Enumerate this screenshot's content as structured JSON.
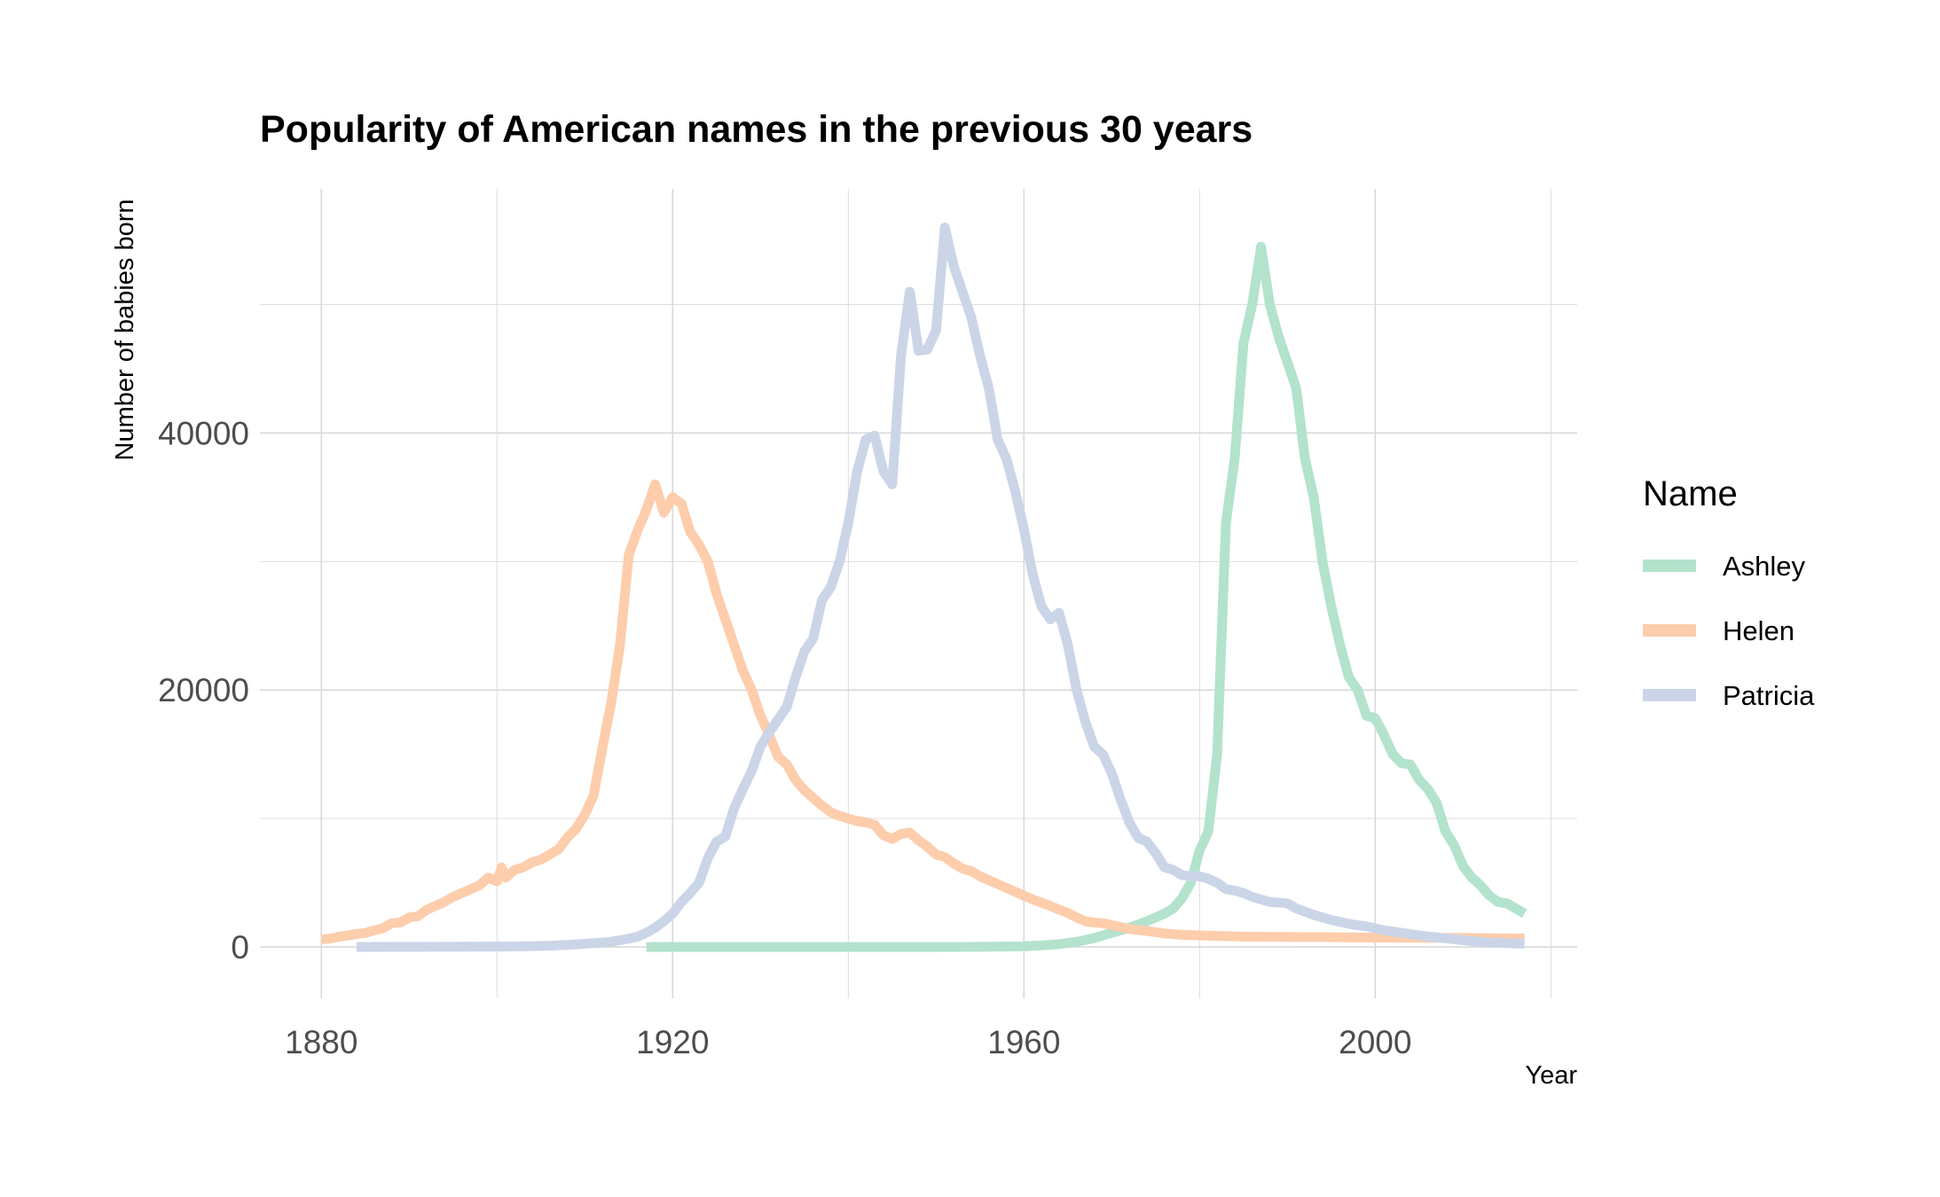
{
  "chart_data": {
    "type": "line",
    "title": "Popularity of American names in the previous 30 years",
    "xlabel": "Year",
    "ylabel": "Number of babies born",
    "xlim": [
      1873,
      2023
    ],
    "ylim": [
      -4000,
      59000
    ],
    "x_ticks": [
      1880,
      1920,
      1960,
      2000
    ],
    "x_tick_labels": [
      "1880",
      "1920",
      "1960",
      "2000"
    ],
    "x_minor_ticks": [
      1900,
      1940,
      1980,
      2020
    ],
    "y_ticks": [
      0,
      20000,
      40000
    ],
    "y_tick_labels": [
      "0",
      "20000",
      "40000"
    ],
    "y_minor_ticks": [
      10000,
      30000,
      50000
    ],
    "grid": true,
    "legend": {
      "title": "Name",
      "position": "right"
    },
    "series": [
      {
        "name": "Ashley",
        "color": "#b3e2cd",
        "points": [
          [
            1917,
            0
          ],
          [
            1920,
            0
          ],
          [
            1930,
            0
          ],
          [
            1940,
            0
          ],
          [
            1950,
            0
          ],
          [
            1955,
            10
          ],
          [
            1960,
            60
          ],
          [
            1962,
            120
          ],
          [
            1964,
            220
          ],
          [
            1966,
            400
          ],
          [
            1968,
            700
          ],
          [
            1970,
            1100
          ],
          [
            1972,
            1500
          ],
          [
            1974,
            2000
          ],
          [
            1976,
            2600
          ],
          [
            1977,
            3000
          ],
          [
            1978,
            3800
          ],
          [
            1979,
            5000
          ],
          [
            1980,
            7500
          ],
          [
            1981,
            9000
          ],
          [
            1982,
            15000
          ],
          [
            1983,
            33000
          ],
          [
            1984,
            38000
          ],
          [
            1985,
            47000
          ],
          [
            1986,
            50000
          ],
          [
            1987,
            54500
          ],
          [
            1988,
            50000
          ],
          [
            1989,
            47500
          ],
          [
            1990,
            45500
          ],
          [
            1991,
            43500
          ],
          [
            1992,
            38000
          ],
          [
            1993,
            35000
          ],
          [
            1994,
            30000
          ],
          [
            1995,
            26500
          ],
          [
            1996,
            23500
          ],
          [
            1997,
            21000
          ],
          [
            1998,
            20000
          ],
          [
            1999,
            18000
          ],
          [
            2000,
            17800
          ],
          [
            2001,
            16500
          ],
          [
            2002,
            15000
          ],
          [
            2003,
            14300
          ],
          [
            2004,
            14200
          ],
          [
            2005,
            13000
          ],
          [
            2006,
            12300
          ],
          [
            2007,
            11200
          ],
          [
            2008,
            9000
          ],
          [
            2009,
            7900
          ],
          [
            2010,
            6300
          ],
          [
            2011,
            5400
          ],
          [
            2012,
            4800
          ],
          [
            2013,
            4000
          ],
          [
            2014,
            3500
          ],
          [
            2015,
            3400
          ],
          [
            2016,
            3000
          ],
          [
            2017,
            2600
          ]
        ]
      },
      {
        "name": "Helen",
        "color": "#fdcdac",
        "points": [
          [
            1880,
            600
          ],
          [
            1881,
            650
          ],
          [
            1882,
            800
          ],
          [
            1883,
            900
          ],
          [
            1884,
            1000
          ],
          [
            1885,
            1100
          ],
          [
            1886,
            1300
          ],
          [
            1887,
            1450
          ],
          [
            1888,
            1850
          ],
          [
            1889,
            1900
          ],
          [
            1890,
            2300
          ],
          [
            1891,
            2400
          ],
          [
            1892,
            2900
          ],
          [
            1893,
            3200
          ],
          [
            1894,
            3500
          ],
          [
            1895,
            3900
          ],
          [
            1896,
            4200
          ],
          [
            1897,
            4500
          ],
          [
            1898,
            4800
          ],
          [
            1899,
            5400
          ],
          [
            1900,
            5100
          ],
          [
            1900.5,
            6200
          ],
          [
            1901,
            5400
          ],
          [
            1902,
            6000
          ],
          [
            1903,
            6200
          ],
          [
            1904,
            6600
          ],
          [
            1905,
            6800
          ],
          [
            1906,
            7200
          ],
          [
            1907,
            7600
          ],
          [
            1908,
            8500
          ],
          [
            1909,
            9200
          ],
          [
            1910,
            10300
          ],
          [
            1911,
            11800
          ],
          [
            1912,
            15500
          ],
          [
            1913,
            19000
          ],
          [
            1914,
            23500
          ],
          [
            1915,
            30500
          ],
          [
            1916,
            32400
          ],
          [
            1917,
            34000
          ],
          [
            1918,
            36000
          ],
          [
            1919,
            33800
          ],
          [
            1920,
            35000
          ],
          [
            1921,
            34500
          ],
          [
            1922,
            32300
          ],
          [
            1923,
            31300
          ],
          [
            1924,
            30000
          ],
          [
            1925,
            27500
          ],
          [
            1926,
            25500
          ],
          [
            1927,
            23500
          ],
          [
            1928,
            21500
          ],
          [
            1929,
            20000
          ],
          [
            1930,
            18000
          ],
          [
            1931,
            16500
          ],
          [
            1932,
            14800
          ],
          [
            1933,
            14200
          ],
          [
            1934,
            13000
          ],
          [
            1935,
            12200
          ],
          [
            1936,
            11600
          ],
          [
            1937,
            11000
          ],
          [
            1938,
            10500
          ],
          [
            1939,
            10200
          ],
          [
            1940,
            10000
          ],
          [
            1941,
            9800
          ],
          [
            1942,
            9700
          ],
          [
            1943,
            9500
          ],
          [
            1944,
            8700
          ],
          [
            1945,
            8400
          ],
          [
            1946,
            8800
          ],
          [
            1947,
            8900
          ],
          [
            1948,
            8300
          ],
          [
            1949,
            7800
          ],
          [
            1950,
            7200
          ],
          [
            1951,
            7000
          ],
          [
            1952,
            6500
          ],
          [
            1953,
            6100
          ],
          [
            1954,
            5900
          ],
          [
            1955,
            5500
          ],
          [
            1956,
            5200
          ],
          [
            1957,
            4900
          ],
          [
            1958,
            4600
          ],
          [
            1959,
            4300
          ],
          [
            1960,
            4000
          ],
          [
            1961,
            3700
          ],
          [
            1962,
            3450
          ],
          [
            1963,
            3200
          ],
          [
            1964,
            2900
          ],
          [
            1965,
            2650
          ],
          [
            1966,
            2300
          ],
          [
            1967,
            2000
          ],
          [
            1968,
            1900
          ],
          [
            1969,
            1850
          ],
          [
            1970,
            1700
          ],
          [
            1972,
            1400
          ],
          [
            1974,
            1250
          ],
          [
            1976,
            1050
          ],
          [
            1978,
            950
          ],
          [
            1980,
            900
          ],
          [
            1985,
            800
          ],
          [
            1990,
            780
          ],
          [
            1995,
            760
          ],
          [
            2000,
            730
          ],
          [
            2005,
            720
          ],
          [
            2010,
            700
          ],
          [
            2015,
            680
          ],
          [
            2017,
            680
          ]
        ]
      },
      {
        "name": "Patricia",
        "color": "#cbd5e8",
        "points": [
          [
            1884,
            0
          ],
          [
            1890,
            10
          ],
          [
            1895,
            20
          ],
          [
            1900,
            40
          ],
          [
            1903,
            60
          ],
          [
            1906,
            100
          ],
          [
            1909,
            200
          ],
          [
            1911,
            300
          ],
          [
            1913,
            400
          ],
          [
            1915,
            650
          ],
          [
            1916,
            800
          ],
          [
            1917,
            1100
          ],
          [
            1918,
            1500
          ],
          [
            1919,
            2000
          ],
          [
            1920,
            2600
          ],
          [
            1921,
            3500
          ],
          [
            1922,
            4200
          ],
          [
            1923,
            5000
          ],
          [
            1924,
            6900
          ],
          [
            1925,
            8200
          ],
          [
            1926,
            8600
          ],
          [
            1927,
            10800
          ],
          [
            1928,
            12300
          ],
          [
            1929,
            13700
          ],
          [
            1930,
            15600
          ],
          [
            1931,
            16700
          ],
          [
            1932,
            17700
          ],
          [
            1933,
            18700
          ],
          [
            1934,
            21000
          ],
          [
            1935,
            23000
          ],
          [
            1936,
            24000
          ],
          [
            1937,
            27000
          ],
          [
            1938,
            28000
          ],
          [
            1939,
            30000
          ],
          [
            1940,
            33000
          ],
          [
            1941,
            37000
          ],
          [
            1942,
            39500
          ],
          [
            1943,
            39800
          ],
          [
            1944,
            37000
          ],
          [
            1945,
            36000
          ],
          [
            1946,
            46000
          ],
          [
            1947,
            51000
          ],
          [
            1948,
            46400
          ],
          [
            1949,
            46500
          ],
          [
            1950,
            48000
          ],
          [
            1951,
            56000
          ],
          [
            1952,
            53000
          ],
          [
            1953,
            51000
          ],
          [
            1954,
            49000
          ],
          [
            1955,
            46000
          ],
          [
            1956,
            43500
          ],
          [
            1957,
            39500
          ],
          [
            1958,
            38000
          ],
          [
            1959,
            35500
          ],
          [
            1960,
            32500
          ],
          [
            1961,
            29000
          ],
          [
            1962,
            26500
          ],
          [
            1963,
            25500
          ],
          [
            1964,
            26000
          ],
          [
            1965,
            23500
          ],
          [
            1966,
            20000
          ],
          [
            1967,
            17500
          ],
          [
            1968,
            15600
          ],
          [
            1969,
            15000
          ],
          [
            1970,
            13500
          ],
          [
            1971,
            11500
          ],
          [
            1972,
            9700
          ],
          [
            1973,
            8500
          ],
          [
            1974,
            8200
          ],
          [
            1975,
            7300
          ],
          [
            1976,
            6200
          ],
          [
            1977,
            6000
          ],
          [
            1978,
            5600
          ],
          [
            1979,
            5500
          ],
          [
            1980,
            5500
          ],
          [
            1981,
            5300
          ],
          [
            1982,
            5000
          ],
          [
            1983,
            4500
          ],
          [
            1984,
            4400
          ],
          [
            1985,
            4200
          ],
          [
            1986,
            3900
          ],
          [
            1987,
            3700
          ],
          [
            1988,
            3500
          ],
          [
            1990,
            3400
          ],
          [
            1991,
            3000
          ],
          [
            1993,
            2500
          ],
          [
            1995,
            2100
          ],
          [
            1997,
            1800
          ],
          [
            1999,
            1600
          ],
          [
            2001,
            1300
          ],
          [
            2003,
            1100
          ],
          [
            2005,
            900
          ],
          [
            2007,
            750
          ],
          [
            2009,
            600
          ],
          [
            2011,
            450
          ],
          [
            2013,
            350
          ],
          [
            2015,
            300
          ],
          [
            2017,
            250
          ]
        ]
      }
    ]
  }
}
